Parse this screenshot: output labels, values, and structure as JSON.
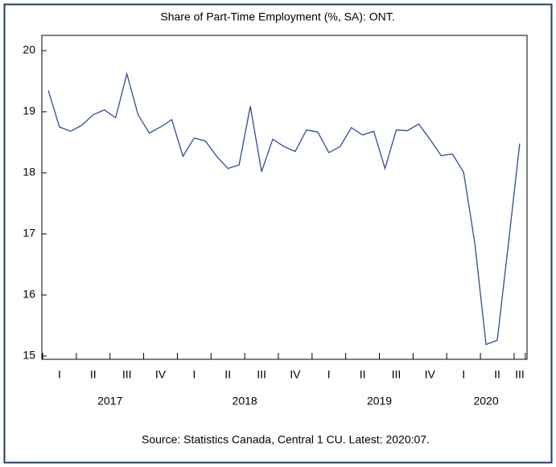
{
  "chart_data": {
    "type": "line",
    "title": "Share of Part-Time Employment (%, SA): ONT.",
    "source": "Source: Statistics Canada, Central 1 CU. Latest: 2020:07.",
    "years": [
      "2017",
      "2018",
      "2019",
      "2020"
    ],
    "quarters": [
      "I",
      "II",
      "III",
      "IV",
      "I",
      "II",
      "III",
      "IV",
      "I",
      "II",
      "III",
      "IV",
      "I",
      "II",
      "III"
    ],
    "series": [
      {
        "color": "#2f4b9a",
        "values": [
          19.35,
          18.75,
          18.68,
          18.78,
          18.95,
          19.03,
          18.9,
          19.62,
          18.95,
          18.65,
          18.75,
          18.87,
          18.27,
          18.57,
          18.52,
          18.27,
          18.07,
          18.13,
          19.09,
          18.02,
          18.55,
          18.43,
          18.35,
          18.7,
          18.67,
          18.33,
          18.43,
          18.74,
          18.62,
          18.68,
          18.07,
          18.7,
          18.69,
          18.8,
          18.55,
          18.28,
          18.31,
          18.01,
          16.85,
          15.19,
          15.26,
          16.85,
          18.48
        ]
      }
    ],
    "ylim": [
      15,
      20
    ],
    "yticks": [
      15,
      16,
      17,
      18,
      19,
      20
    ]
  }
}
